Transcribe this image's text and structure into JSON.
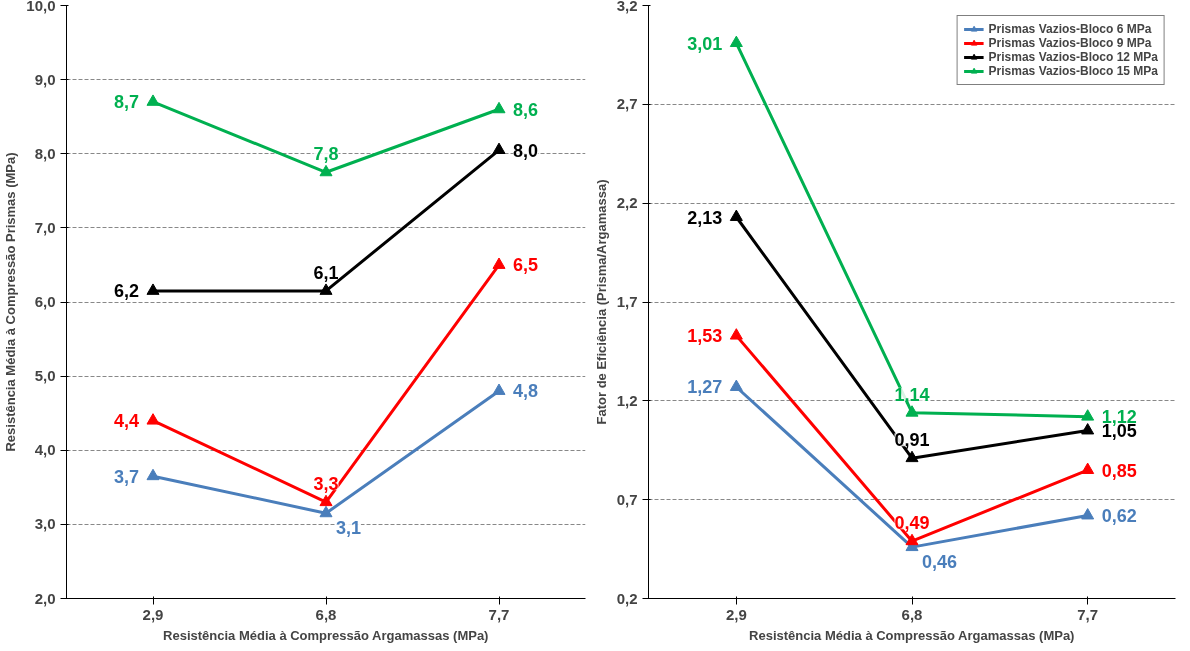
{
  "chart_data": [
    {
      "type": "line",
      "xlabel": "Resistência Média à Compressão Argamassas (MPa)",
      "ylabel": "Resistência Média à Compressão Prismas (MPa)",
      "categories": [
        "2,9",
        "6,8",
        "7,7"
      ],
      "ylim": [
        2,
        10
      ],
      "yticks": [
        {
          "value": 2,
          "label": "2,0"
        },
        {
          "value": 3,
          "label": "3,0"
        },
        {
          "value": 4,
          "label": "4,0"
        },
        {
          "value": 5,
          "label": "5,0"
        },
        {
          "value": 6,
          "label": "6,0"
        },
        {
          "value": 7,
          "label": "7,0"
        },
        {
          "value": 8,
          "label": "8,0"
        },
        {
          "value": 9,
          "label": "9,0"
        },
        {
          "value": 10,
          "label": "10,0"
        }
      ],
      "grid": "y",
      "marker": "triangle",
      "line_style": "solid",
      "legend": false,
      "series": [
        {
          "color": "#4a7ebb",
          "values": [
            3.65,
            3.15,
            4.8
          ],
          "value_labels": [
            "3,7",
            "3,1",
            "4,8"
          ]
        },
        {
          "color": "#ff0000",
          "values": [
            4.4,
            3.3,
            6.5
          ],
          "value_labels": [
            "4,4",
            "3,3",
            "6,5"
          ]
        },
        {
          "color": "#000000",
          "values": [
            6.15,
            6.15,
            8.05
          ],
          "value_labels": [
            "6,2",
            "6,1",
            "8,0"
          ]
        },
        {
          "color": "#00b050",
          "values": [
            8.7,
            7.75,
            8.6
          ],
          "value_labels": [
            "8,7",
            "7,8",
            "8,6"
          ]
        }
      ]
    },
    {
      "type": "line",
      "xlabel": "Resistência Média à Compressão Argamassas (MPa)",
      "ylabel": "Fator de Eficiência (Prisma/Argamassa)",
      "categories": [
        "2,9",
        "6,8",
        "7,7"
      ],
      "ylim": [
        0.2,
        3.2
      ],
      "yticks": [
        {
          "value": 0.2,
          "label": "0,2"
        },
        {
          "value": 0.7,
          "label": "0,7"
        },
        {
          "value": 1.2,
          "label": "1,2"
        },
        {
          "value": 1.7,
          "label": "1,7"
        },
        {
          "value": 2.2,
          "label": "2,2"
        },
        {
          "value": 2.7,
          "label": "2,7"
        },
        {
          "value": 3.2,
          "label": "3,2"
        }
      ],
      "grid": "y",
      "marker": "triangle",
      "line_style": "solid",
      "legend": "top right",
      "series": [
        {
          "name": "Prismas Vazios-Bloco 6 MPa",
          "color": "#4a7ebb",
          "values": [
            1.27,
            0.46,
            0.62
          ],
          "value_labels": [
            "1,27",
            "0,46",
            "0,62"
          ]
        },
        {
          "name": "Prismas Vazios-Bloco 9 MPa",
          "color": "#ff0000",
          "values": [
            1.53,
            0.49,
            0.85
          ],
          "value_labels": [
            "1,53",
            "0,49",
            "0,85"
          ]
        },
        {
          "name": "Prismas Vazios-Bloco 12 MPa",
          "color": "#000000",
          "values": [
            2.13,
            0.91,
            1.05
          ],
          "value_labels": [
            "2,13",
            "0,91",
            "1,05"
          ]
        },
        {
          "name": "Prismas Vazios-Bloco 15 MPa",
          "color": "#00b050",
          "values": [
            3.01,
            1.14,
            1.12
          ],
          "value_labels": [
            "3,01",
            "1,14",
            "1,12"
          ]
        }
      ]
    }
  ]
}
